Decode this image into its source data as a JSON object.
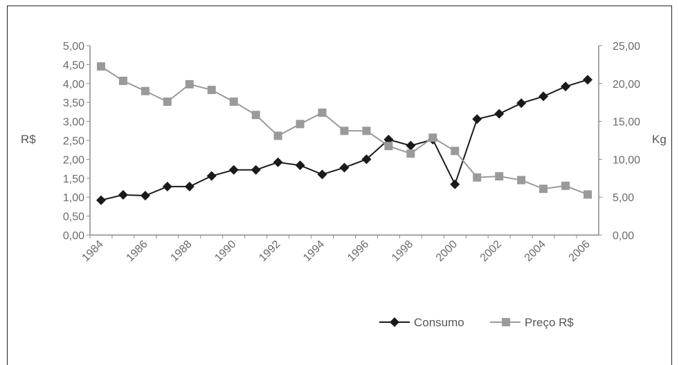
{
  "chart_data": {
    "type": "line",
    "x": [
      1984,
      1985,
      1986,
      1987,
      1988,
      1989,
      1990,
      1991,
      1992,
      1993,
      1994,
      1995,
      1996,
      1997,
      1998,
      1999,
      2000,
      2001,
      2002,
      2003,
      2004,
      2005,
      2006
    ],
    "xtick_labels": [
      "1984",
      "1986",
      "1988",
      "1990",
      "1992",
      "1994",
      "1996",
      "1998",
      "2000",
      "2002",
      "2004",
      "2006"
    ],
    "left_axis": {
      "label": "R$",
      "ylim": [
        0,
        5
      ],
      "ticks": [
        "0,00",
        "0,50",
        "1,00",
        "1,50",
        "2,00",
        "2,50",
        "3,00",
        "3,50",
        "4,00",
        "4,50",
        "5,00"
      ]
    },
    "right_axis": {
      "label": "Kg",
      "ylim": [
        0,
        25
      ],
      "ticks": [
        "0,00",
        "5,00",
        "10,00",
        "15,00",
        "20,00",
        "25,00"
      ]
    },
    "series": [
      {
        "name": "Consumo",
        "axis": "right",
        "color": "#1a1a1a",
        "marker": "diamond",
        "values": [
          4.6,
          5.3,
          5.2,
          6.4,
          6.4,
          7.8,
          8.6,
          8.6,
          9.6,
          9.2,
          8.0,
          8.9,
          10.0,
          12.6,
          11.8,
          12.6,
          6.7,
          15.3,
          16.0,
          17.4,
          18.3,
          19.6,
          20.5
        ]
      },
      {
        "name": "Preço R$",
        "axis": "left",
        "color": "#9a9a9a",
        "marker": "square",
        "values": [
          4.45,
          4.07,
          3.8,
          3.52,
          3.98,
          3.83,
          3.52,
          3.17,
          2.62,
          2.93,
          3.23,
          2.75,
          2.75,
          2.35,
          2.15,
          2.57,
          2.22,
          1.52,
          1.55,
          1.45,
          1.22,
          1.3,
          1.07
        ]
      }
    ],
    "grid": false,
    "legend_position": "bottom-right"
  }
}
